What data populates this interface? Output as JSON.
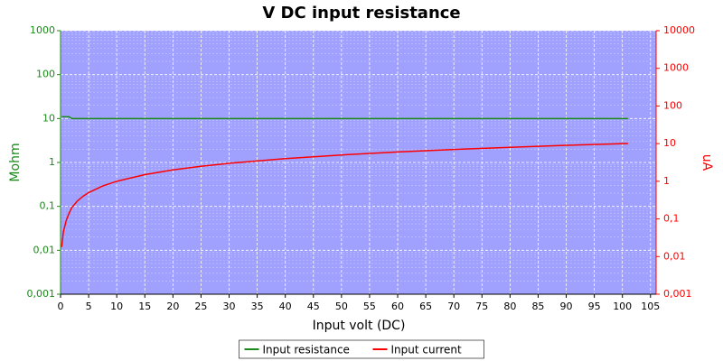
{
  "chart_data": {
    "type": "line",
    "title": "V DC input resistance",
    "x_label": "Input volt (DC)",
    "y_label": "Mohm",
    "y2_label": "uA",
    "x": [
      0.2,
      0.5,
      1,
      1.5,
      2,
      3,
      4,
      5,
      7.5,
      10,
      15,
      20,
      25,
      30,
      40,
      50,
      60,
      70,
      80,
      90,
      101
    ],
    "series": [
      {
        "name": "Input resistance",
        "color": "#1a8a1a",
        "values": [
          11,
          11,
          11,
          11,
          10,
          10,
          10,
          10,
          10,
          10,
          10,
          10,
          10,
          10,
          10,
          10,
          10,
          10,
          10,
          10,
          10
        ]
      },
      {
        "name": "Input current",
        "color": "#ff0000",
        "axis": "y2",
        "values": [
          0.018,
          0.045,
          0.09,
          0.14,
          0.2,
          0.3,
          0.4,
          0.5,
          0.75,
          1,
          1.5,
          2,
          2.5,
          3,
          4,
          5,
          6,
          7,
          8,
          9,
          10.1
        ]
      }
    ],
    "xlim": [
      0,
      106
    ],
    "xticks": [
      0,
      5,
      10,
      15,
      20,
      25,
      30,
      35,
      40,
      45,
      50,
      55,
      60,
      65,
      70,
      75,
      80,
      85,
      90,
      95,
      100,
      105
    ],
    "ylim": [
      0.001,
      1000
    ],
    "y_scale": "log",
    "yticks": [
      {
        "value": 0.001,
        "label": "0,001"
      },
      {
        "value": 0.01,
        "label": "0,01"
      },
      {
        "value": 0.1,
        "label": "0,1"
      },
      1,
      10,
      100,
      1000
    ],
    "y2lim": [
      0.001,
      10000
    ],
    "y2_scale": "log",
    "y2ticks": [
      {
        "value": 0.001,
        "label": "0,001"
      },
      {
        "value": 0.01,
        "label": "0,01"
      },
      {
        "value": 0.1,
        "label": "0,1"
      },
      1,
      10,
      100,
      1000,
      10000
    ],
    "y_color": "#1a8a1a",
    "y2_color": "#ff0000",
    "grid": true,
    "plot_background": "#a0a0ff",
    "legend": "bottom"
  }
}
